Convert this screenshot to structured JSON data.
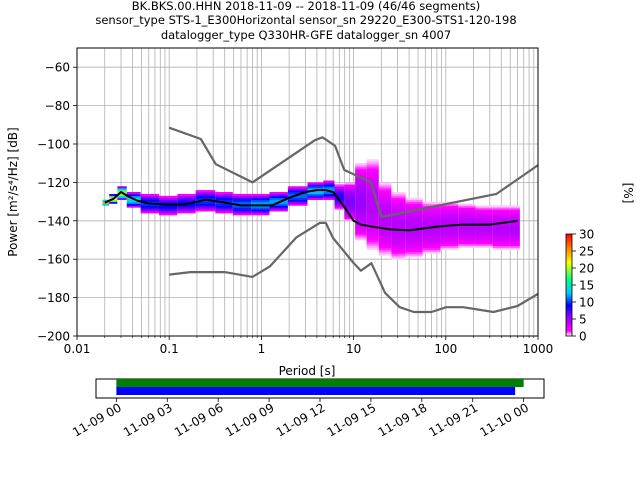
{
  "chart_data": {
    "type": "heatmap",
    "title_lines": [
      "BK.BKS.00.HHN   2018-11-09 -- 2018-11-09  (46/46 segments)",
      "sensor_type STS-1_E300Horizontal sensor_sn 29220_E300-STS1-120-198",
      "datalogger_type Q330HR-GFE datalogger_sn 4007"
    ],
    "xlabel": "Period [s]",
    "ylabel": "Power [m²/s⁴/Hz] [dB]",
    "x_scale": "log",
    "xlim": [
      0.01,
      1000
    ],
    "ylim": [
      -200,
      -50
    ],
    "x_ticks": [
      {
        "value": 0.01,
        "label": "0.01"
      },
      {
        "value": 0.1,
        "label": "0.1"
      },
      {
        "value": 1,
        "label": "1"
      },
      {
        "value": 10,
        "label": "10"
      },
      {
        "value": 100,
        "label": "100"
      },
      {
        "value": 1000,
        "label": "1000"
      }
    ],
    "y_ticks": [
      {
        "value": -60,
        "label": "−60"
      },
      {
        "value": -80,
        "label": "−80"
      },
      {
        "value": -100,
        "label": "−100"
      },
      {
        "value": -120,
        "label": "−120"
      },
      {
        "value": -140,
        "label": "−140"
      },
      {
        "value": -160,
        "label": "−160"
      },
      {
        "value": -180,
        "label": "−180"
      },
      {
        "value": -200,
        "label": "−200"
      }
    ],
    "grid": true,
    "colorbar": {
      "label": "[%]",
      "min": 0,
      "max": 30,
      "ticks": [
        {
          "value": 0,
          "label": "0"
        },
        {
          "value": 5,
          "label": "5"
        },
        {
          "value": 10,
          "label": "10"
        },
        {
          "value": 15,
          "label": "15"
        },
        {
          "value": 20,
          "label": "20"
        },
        {
          "value": 25,
          "label": "25"
        },
        {
          "value": 30,
          "label": "30"
        }
      ]
    },
    "series": [
      {
        "role": "new-high-noise-model",
        "color": "#666666",
        "points": [
          [
            0.1,
            -91.5
          ],
          [
            0.22,
            -97.4
          ],
          [
            0.32,
            -110.5
          ],
          [
            0.8,
            -120
          ],
          [
            3.8,
            -98
          ],
          [
            4.6,
            -96.5
          ],
          [
            6.3,
            -101
          ],
          [
            7.9,
            -113.5
          ],
          [
            15.4,
            -120
          ],
          [
            20,
            -138
          ],
          [
            354.8,
            -126
          ],
          [
            1000,
            -111
          ]
        ]
      },
      {
        "role": "new-low-noise-model",
        "color": "#666666",
        "points": [
          [
            0.1,
            -168
          ],
          [
            0.17,
            -166.7
          ],
          [
            0.4,
            -166.7
          ],
          [
            0.8,
            -169.2
          ],
          [
            1.24,
            -163.7
          ],
          [
            2.4,
            -148.6
          ],
          [
            4.3,
            -141.1
          ],
          [
            5,
            -141.1
          ],
          [
            6,
            -149
          ],
          [
            10,
            -162
          ],
          [
            12,
            -166
          ],
          [
            15.6,
            -162.1
          ],
          [
            21.9,
            -177.5
          ],
          [
            31.6,
            -185
          ],
          [
            45,
            -187.5
          ],
          [
            70,
            -187.5
          ],
          [
            101,
            -185
          ],
          [
            154,
            -185
          ],
          [
            328,
            -187.5
          ],
          [
            600,
            -184.4
          ],
          [
            1000,
            -178
          ]
        ]
      },
      {
        "role": "mode-line",
        "color": "#000000",
        "points": [
          [
            0.02,
            -130.5
          ],
          [
            0.025,
            -128.5
          ],
          [
            0.03,
            -125
          ],
          [
            0.035,
            -127
          ],
          [
            0.045,
            -129.5
          ],
          [
            0.06,
            -131
          ],
          [
            0.1,
            -131.5
          ],
          [
            0.15,
            -131.5
          ],
          [
            0.25,
            -129
          ],
          [
            0.4,
            -130.5
          ],
          [
            0.6,
            -132
          ],
          [
            0.9,
            -132
          ],
          [
            1.3,
            -132
          ],
          [
            2,
            -128
          ],
          [
            3,
            -125
          ],
          [
            4,
            -124
          ],
          [
            5,
            -124
          ],
          [
            6,
            -125
          ],
          [
            8,
            -133
          ],
          [
            10,
            -140
          ],
          [
            12,
            -142
          ],
          [
            16,
            -143
          ],
          [
            25,
            -144.5
          ],
          [
            40,
            -145
          ],
          [
            80,
            -143
          ],
          [
            150,
            -142
          ],
          [
            300,
            -142
          ],
          [
            600,
            -140
          ]
        ]
      }
    ],
    "density_band": {
      "color_scale": [
        "#ffffff",
        "#ff00ff",
        "#0000ff",
        "#00c8ff",
        "#00ff80",
        "#ffff00",
        "#ff8000",
        "#ff0000"
      ],
      "rows": [
        {
          "period": 0.02,
          "low": -132,
          "high": -129,
          "peak": 25
        },
        {
          "period": 0.025,
          "low": -131,
          "high": -126,
          "peak": 22
        },
        {
          "period": 0.03,
          "low": -129,
          "high": -122,
          "peak": 20
        },
        {
          "period": 0.04,
          "low": -133,
          "high": -125,
          "peak": 14
        },
        {
          "period": 0.06,
          "low": -136,
          "high": -126,
          "peak": 10
        },
        {
          "period": 0.1,
          "low": -137,
          "high": -127,
          "peak": 9
        },
        {
          "period": 0.15,
          "low": -136,
          "high": -126,
          "peak": 9
        },
        {
          "period": 0.25,
          "low": -135,
          "high": -124,
          "peak": 10
        },
        {
          "period": 0.4,
          "low": -136,
          "high": -125,
          "peak": 10
        },
        {
          "period": 0.6,
          "low": -137,
          "high": -126,
          "peak": 11
        },
        {
          "period": 1,
          "low": -137,
          "high": -126,
          "peak": 12
        },
        {
          "period": 1.5,
          "low": -135,
          "high": -125,
          "peak": 12
        },
        {
          "period": 2.5,
          "low": -132,
          "high": -122,
          "peak": 11
        },
        {
          "period": 4,
          "low": -129,
          "high": -120,
          "peak": 13
        },
        {
          "period": 5.5,
          "low": -129,
          "high": -119,
          "peak": 12
        },
        {
          "period": 7,
          "low": -134,
          "high": -121,
          "peak": 8
        },
        {
          "period": 9,
          "low": -140,
          "high": -120,
          "peak": 6
        },
        {
          "period": 12,
          "low": -150,
          "high": -110,
          "peak": 5
        },
        {
          "period": 16,
          "low": -155,
          "high": -108,
          "peak": 4
        },
        {
          "period": 22,
          "low": -158,
          "high": -120,
          "peak": 4
        },
        {
          "period": 30,
          "low": -160,
          "high": -125,
          "peak": 4
        },
        {
          "period": 45,
          "low": -159,
          "high": -128,
          "peak": 4
        },
        {
          "period": 70,
          "low": -157,
          "high": -130,
          "peak": 4
        },
        {
          "period": 110,
          "low": -155,
          "high": -130,
          "peak": 4
        },
        {
          "period": 170,
          "low": -154,
          "high": -131,
          "peak": 4
        },
        {
          "period": 260,
          "low": -154,
          "high": -132,
          "peak": 4
        },
        {
          "period": 400,
          "low": -155,
          "high": -132,
          "peak": 4
        },
        {
          "period": 600,
          "low": -155,
          "high": -132,
          "peak": 4
        }
      ]
    },
    "timeline": {
      "ticks": [
        {
          "hour": 0,
          "label": "11-09 00"
        },
        {
          "hour": 3,
          "label": "11-09 03"
        },
        {
          "hour": 6,
          "label": "11-09 06"
        },
        {
          "hour": 9,
          "label": "11-09 09"
        },
        {
          "hour": 12,
          "label": "11-09 12"
        },
        {
          "hour": 15,
          "label": "11-09 15"
        },
        {
          "hour": 18,
          "label": "11-09 18"
        },
        {
          "hour": 21,
          "label": "11-09 21"
        },
        {
          "hour": 24,
          "label": "11-10 00"
        }
      ],
      "xlim_hours": [
        -1.2,
        25.2
      ],
      "bars": [
        {
          "color": "#008000",
          "start_hour": 0,
          "end_hour": 24.0
        },
        {
          "color": "#0000ff",
          "start_hour": 0,
          "end_hour": 23.5
        }
      ]
    }
  }
}
